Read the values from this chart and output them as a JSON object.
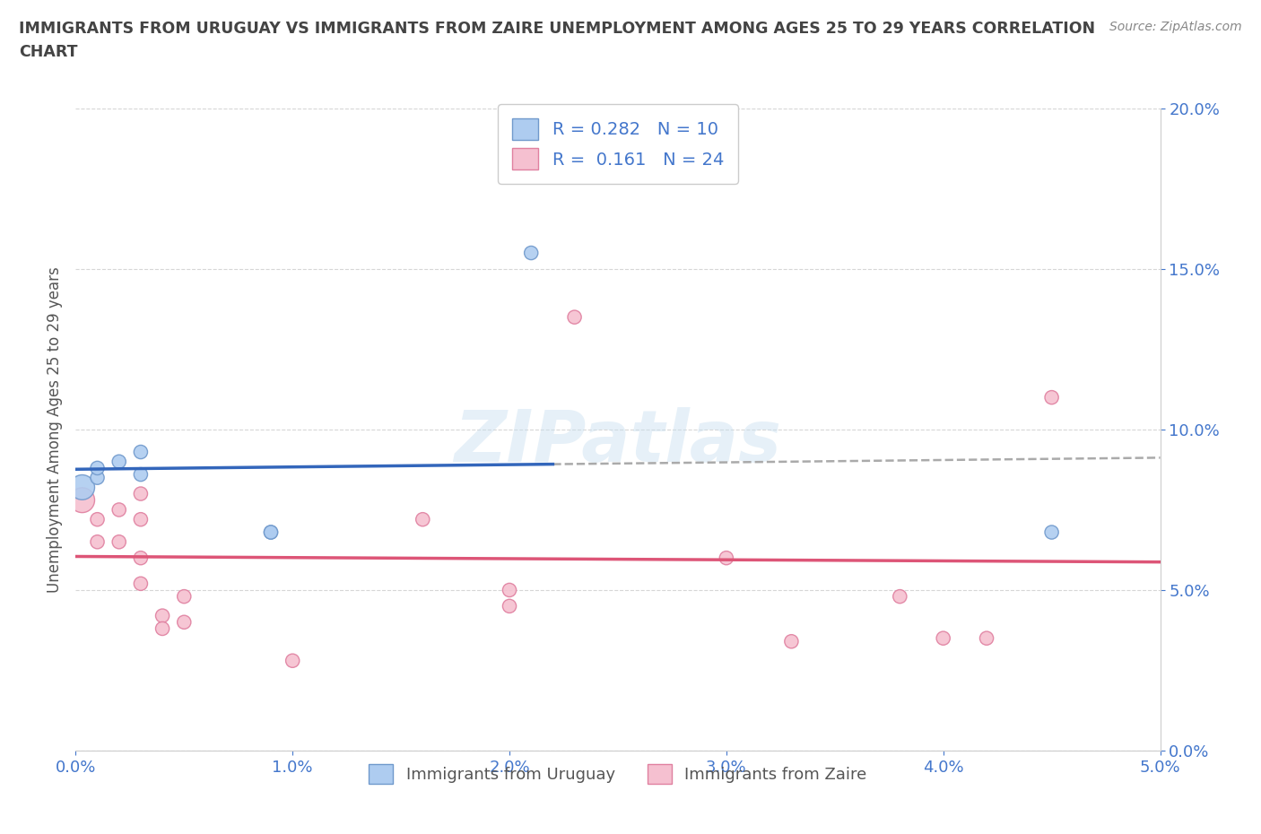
{
  "title_line1": "IMMIGRANTS FROM URUGUAY VS IMMIGRANTS FROM ZAIRE UNEMPLOYMENT AMONG AGES 25 TO 29 YEARS CORRELATION",
  "title_line2": "CHART",
  "source_text": "Source: ZipAtlas.com",
  "ylabel": "Unemployment Among Ages 25 to 29 years",
  "xlim": [
    0.0,
    0.05
  ],
  "ylim": [
    0.0,
    0.2
  ],
  "xticks": [
    0.0,
    0.01,
    0.02,
    0.03,
    0.04,
    0.05
  ],
  "yticks": [
    0.0,
    0.05,
    0.1,
    0.15,
    0.2
  ],
  "uruguay_color": "#aeccf0",
  "uruguay_edge_color": "#7099cc",
  "zaire_color": "#f5c0d0",
  "zaire_edge_color": "#e080a0",
  "trend_uruguay_color": "#3366bb",
  "trend_zaire_color": "#dd5577",
  "trend_dashed_color": "#aaaaaa",
  "R_uruguay": 0.282,
  "N_uruguay": 10,
  "R_zaire": 0.161,
  "N_zaire": 24,
  "watermark": "ZIPatlas",
  "legend_label_uruguay": "Immigrants from Uruguay",
  "legend_label_zaire": "Immigrants from Zaire",
  "uruguay_x": [
    0.0003,
    0.001,
    0.001,
    0.002,
    0.003,
    0.003,
    0.009,
    0.009,
    0.021,
    0.045
  ],
  "uruguay_y": [
    0.082,
    0.085,
    0.088,
    0.09,
    0.086,
    0.093,
    0.068,
    0.068,
    0.155,
    0.068
  ],
  "uruguay_size": [
    400,
    120,
    120,
    120,
    120,
    120,
    120,
    120,
    120,
    120
  ],
  "zaire_x": [
    0.0003,
    0.001,
    0.001,
    0.002,
    0.002,
    0.003,
    0.003,
    0.003,
    0.003,
    0.004,
    0.004,
    0.005,
    0.005,
    0.01,
    0.016,
    0.02,
    0.02,
    0.023,
    0.03,
    0.033,
    0.038,
    0.04,
    0.042,
    0.045
  ],
  "zaire_y": [
    0.078,
    0.072,
    0.065,
    0.075,
    0.065,
    0.08,
    0.072,
    0.06,
    0.052,
    0.042,
    0.038,
    0.048,
    0.04,
    0.028,
    0.072,
    0.05,
    0.045,
    0.135,
    0.06,
    0.034,
    0.048,
    0.035,
    0.035,
    0.11
  ],
  "zaire_size": [
    400,
    120,
    120,
    120,
    120,
    120,
    120,
    120,
    120,
    120,
    120,
    120,
    120,
    120,
    120,
    120,
    120,
    120,
    120,
    120,
    120,
    120,
    120,
    120
  ],
  "background_color": "#ffffff",
  "title_color": "#444444",
  "axis_label_color": "#555555",
  "tick_label_color": "#4477cc"
}
